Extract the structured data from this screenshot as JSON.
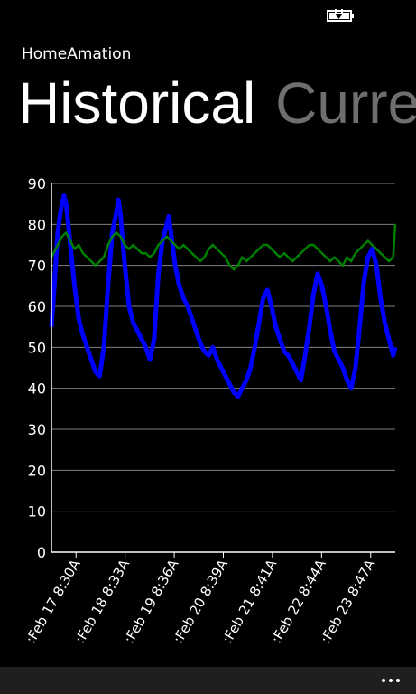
{
  "app": {
    "title": "HomeAmation"
  },
  "pivot": {
    "headers": [
      {
        "label": "Historical",
        "active": true
      },
      {
        "label": "Current",
        "active": false
      }
    ]
  },
  "status_bar": {
    "icons": [
      "battery-charging-icon"
    ]
  },
  "app_bar": {
    "icons": [
      "more-icon"
    ]
  },
  "colors": {
    "accent": "#ffffff",
    "series_1": "#0000ff",
    "series_2": "#008000",
    "grid": "#808080"
  },
  "chart_data": {
    "type": "line",
    "title": "",
    "xlabel": "",
    "ylabel": "",
    "ylim": [
      0,
      90
    ],
    "yticks": [
      0,
      10,
      20,
      30,
      40,
      50,
      60,
      70,
      80,
      90
    ],
    "xlim": [
      "2014-02-17T05:00",
      "2014-02-24T01:00"
    ],
    "xtick_labels": [
      ":Feb 17 8:30A",
      ":Feb 18 8:33A",
      ":Feb 19 8:36A",
      ":Feb 20 8:39A",
      ":Feb 21 8:41A",
      ":Feb 22 8:44A",
      ":Feb 23 8:47A"
    ],
    "grid": true,
    "legend": "none",
    "series": [
      {
        "color": "#0000ff",
        "points": [
          [
            "2014-02-17T05:00",
            55
          ],
          [
            "2014-02-17T06:00",
            62
          ],
          [
            "2014-02-17T07:00",
            70
          ],
          [
            "2014-02-17T08:00",
            78
          ],
          [
            "2014-02-17T09:00",
            82
          ],
          [
            "2014-02-17T10:00",
            85
          ],
          [
            "2014-02-17T11:00",
            87
          ],
          [
            "2014-02-17T12:00",
            85
          ],
          [
            "2014-02-17T14:00",
            75
          ],
          [
            "2014-02-17T16:00",
            65
          ],
          [
            "2014-02-17T18:00",
            57
          ],
          [
            "2014-02-17T20:00",
            53
          ],
          [
            "2014-02-17T22:00",
            50
          ],
          [
            "2014-02-18T00:00",
            47
          ],
          [
            "2014-02-18T02:00",
            44
          ],
          [
            "2014-02-18T04:00",
            43
          ],
          [
            "2014-02-18T06:00",
            50
          ],
          [
            "2014-02-18T08:00",
            65
          ],
          [
            "2014-02-18T10:00",
            78
          ],
          [
            "2014-02-18T12:00",
            83
          ],
          [
            "2014-02-18T13:00",
            86
          ],
          [
            "2014-02-18T14:00",
            82
          ],
          [
            "2014-02-18T16:00",
            70
          ],
          [
            "2014-02-18T18:00",
            60
          ],
          [
            "2014-02-18T20:00",
            56
          ],
          [
            "2014-02-18T22:00",
            54
          ],
          [
            "2014-02-19T00:00",
            52
          ],
          [
            "2014-02-19T02:00",
            50
          ],
          [
            "2014-02-19T04:00",
            47
          ],
          [
            "2014-02-19T06:00",
            52
          ],
          [
            "2014-02-19T08:00",
            68
          ],
          [
            "2014-02-19T10:00",
            76
          ],
          [
            "2014-02-19T12:00",
            80
          ],
          [
            "2014-02-19T13:00",
            82
          ],
          [
            "2014-02-19T14:00",
            78
          ],
          [
            "2014-02-19T16:00",
            70
          ],
          [
            "2014-02-19T18:00",
            65
          ],
          [
            "2014-02-19T20:00",
            62
          ],
          [
            "2014-02-19T22:00",
            60
          ],
          [
            "2014-02-20T00:00",
            57
          ],
          [
            "2014-02-20T02:00",
            54
          ],
          [
            "2014-02-20T04:00",
            51
          ],
          [
            "2014-02-20T06:00",
            49
          ],
          [
            "2014-02-20T08:00",
            48
          ],
          [
            "2014-02-20T10:00",
            50
          ],
          [
            "2014-02-20T12:00",
            47
          ],
          [
            "2014-02-20T14:00",
            45
          ],
          [
            "2014-02-20T16:00",
            43
          ],
          [
            "2014-02-20T18:00",
            41
          ],
          [
            "2014-02-20T20:00",
            39
          ],
          [
            "2014-02-20T22:00",
            38
          ],
          [
            "2014-02-21T00:00",
            40
          ],
          [
            "2014-02-21T02:00",
            42
          ],
          [
            "2014-02-21T04:00",
            45
          ],
          [
            "2014-02-21T06:00",
            50
          ],
          [
            "2014-02-21T08:00",
            56
          ],
          [
            "2014-02-21T10:00",
            62
          ],
          [
            "2014-02-21T12:00",
            64
          ],
          [
            "2014-02-21T14:00",
            60
          ],
          [
            "2014-02-21T16:00",
            55
          ],
          [
            "2014-02-21T18:00",
            52
          ],
          [
            "2014-02-21T20:00",
            49
          ],
          [
            "2014-02-21T22:00",
            48
          ],
          [
            "2014-02-22T00:00",
            46
          ],
          [
            "2014-02-22T02:00",
            44
          ],
          [
            "2014-02-22T04:00",
            42
          ],
          [
            "2014-02-22T06:00",
            48
          ],
          [
            "2014-02-22T08:00",
            55
          ],
          [
            "2014-02-22T10:00",
            63
          ],
          [
            "2014-02-22T12:00",
            68
          ],
          [
            "2014-02-22T14:00",
            65
          ],
          [
            "2014-02-22T16:00",
            60
          ],
          [
            "2014-02-22T18:00",
            54
          ],
          [
            "2014-02-22T20:00",
            49
          ],
          [
            "2014-02-22T22:00",
            47
          ],
          [
            "2014-02-23T00:00",
            45
          ],
          [
            "2014-02-23T02:00",
            42
          ],
          [
            "2014-02-23T04:00",
            40
          ],
          [
            "2014-02-23T06:00",
            45
          ],
          [
            "2014-02-23T08:00",
            55
          ],
          [
            "2014-02-23T10:00",
            66
          ],
          [
            "2014-02-23T12:00",
            72
          ],
          [
            "2014-02-23T14:00",
            74
          ],
          [
            "2014-02-23T16:00",
            70
          ],
          [
            "2014-02-23T18:00",
            62
          ],
          [
            "2014-02-23T20:00",
            56
          ],
          [
            "2014-02-23T22:00",
            52
          ],
          [
            "2014-02-24T00:00",
            48
          ],
          [
            "2014-02-24T01:00",
            50
          ]
        ]
      },
      {
        "color": "#008000",
        "points": [
          [
            "2014-02-17T05:00",
            72
          ],
          [
            "2014-02-17T08:00",
            75
          ],
          [
            "2014-02-17T10:00",
            77
          ],
          [
            "2014-02-17T12:00",
            78
          ],
          [
            "2014-02-17T14:00",
            76
          ],
          [
            "2014-02-17T16:00",
            74
          ],
          [
            "2014-02-17T18:00",
            75
          ],
          [
            "2014-02-17T20:00",
            73
          ],
          [
            "2014-02-17T22:00",
            72
          ],
          [
            "2014-02-18T00:00",
            71
          ],
          [
            "2014-02-18T02:00",
            70
          ],
          [
            "2014-02-18T04:00",
            71
          ],
          [
            "2014-02-18T06:00",
            72
          ],
          [
            "2014-02-18T08:00",
            75
          ],
          [
            "2014-02-18T10:00",
            77
          ],
          [
            "2014-02-18T12:00",
            78
          ],
          [
            "2014-02-18T14:00",
            77
          ],
          [
            "2014-02-18T16:00",
            75
          ],
          [
            "2014-02-18T18:00",
            74
          ],
          [
            "2014-02-18T20:00",
            75
          ],
          [
            "2014-02-18T22:00",
            74
          ],
          [
            "2014-02-19T00:00",
            73
          ],
          [
            "2014-02-19T02:00",
            73
          ],
          [
            "2014-02-19T04:00",
            72
          ],
          [
            "2014-02-19T06:00",
            73
          ],
          [
            "2014-02-19T08:00",
            75
          ],
          [
            "2014-02-19T10:00",
            76
          ],
          [
            "2014-02-19T12:00",
            77
          ],
          [
            "2014-02-19T14:00",
            76
          ],
          [
            "2014-02-19T16:00",
            75
          ],
          [
            "2014-02-19T18:00",
            74
          ],
          [
            "2014-02-19T20:00",
            75
          ],
          [
            "2014-02-19T22:00",
            74
          ],
          [
            "2014-02-20T00:00",
            73
          ],
          [
            "2014-02-20T02:00",
            72
          ],
          [
            "2014-02-20T04:00",
            71
          ],
          [
            "2014-02-20T06:00",
            72
          ],
          [
            "2014-02-20T08:00",
            74
          ],
          [
            "2014-02-20T10:00",
            75
          ],
          [
            "2014-02-20T12:00",
            74
          ],
          [
            "2014-02-20T14:00",
            73
          ],
          [
            "2014-02-20T16:00",
            72
          ],
          [
            "2014-02-20T18:00",
            70
          ],
          [
            "2014-02-20T20:00",
            69
          ],
          [
            "2014-02-20T22:00",
            70
          ],
          [
            "2014-02-21T00:00",
            72
          ],
          [
            "2014-02-21T02:00",
            71
          ],
          [
            "2014-02-21T04:00",
            72
          ],
          [
            "2014-02-21T06:00",
            73
          ],
          [
            "2014-02-21T08:00",
            74
          ],
          [
            "2014-02-21T10:00",
            75
          ],
          [
            "2014-02-21T12:00",
            75
          ],
          [
            "2014-02-21T14:00",
            74
          ],
          [
            "2014-02-21T16:00",
            73
          ],
          [
            "2014-02-21T18:00",
            72
          ],
          [
            "2014-02-21T20:00",
            73
          ],
          [
            "2014-02-21T22:00",
            72
          ],
          [
            "2014-02-22T00:00",
            71
          ],
          [
            "2014-02-22T02:00",
            72
          ],
          [
            "2014-02-22T04:00",
            73
          ],
          [
            "2014-02-22T06:00",
            74
          ],
          [
            "2014-02-22T08:00",
            75
          ],
          [
            "2014-02-22T10:00",
            75
          ],
          [
            "2014-02-22T12:00",
            74
          ],
          [
            "2014-02-22T14:00",
            73
          ],
          [
            "2014-02-22T16:00",
            72
          ],
          [
            "2014-02-22T18:00",
            71
          ],
          [
            "2014-02-22T20:00",
            72
          ],
          [
            "2014-02-22T22:00",
            71
          ],
          [
            "2014-02-23T00:00",
            70
          ],
          [
            "2014-02-23T02:00",
            72
          ],
          [
            "2014-02-23T04:00",
            71
          ],
          [
            "2014-02-23T06:00",
            73
          ],
          [
            "2014-02-23T08:00",
            74
          ],
          [
            "2014-02-23T10:00",
            75
          ],
          [
            "2014-02-23T12:00",
            76
          ],
          [
            "2014-02-23T14:00",
            75
          ],
          [
            "2014-02-23T16:00",
            74
          ],
          [
            "2014-02-23T18:00",
            73
          ],
          [
            "2014-02-23T20:00",
            72
          ],
          [
            "2014-02-23T22:00",
            71
          ],
          [
            "2014-02-24T00:00",
            72
          ],
          [
            "2014-02-24T01:00",
            80
          ]
        ]
      }
    ]
  }
}
